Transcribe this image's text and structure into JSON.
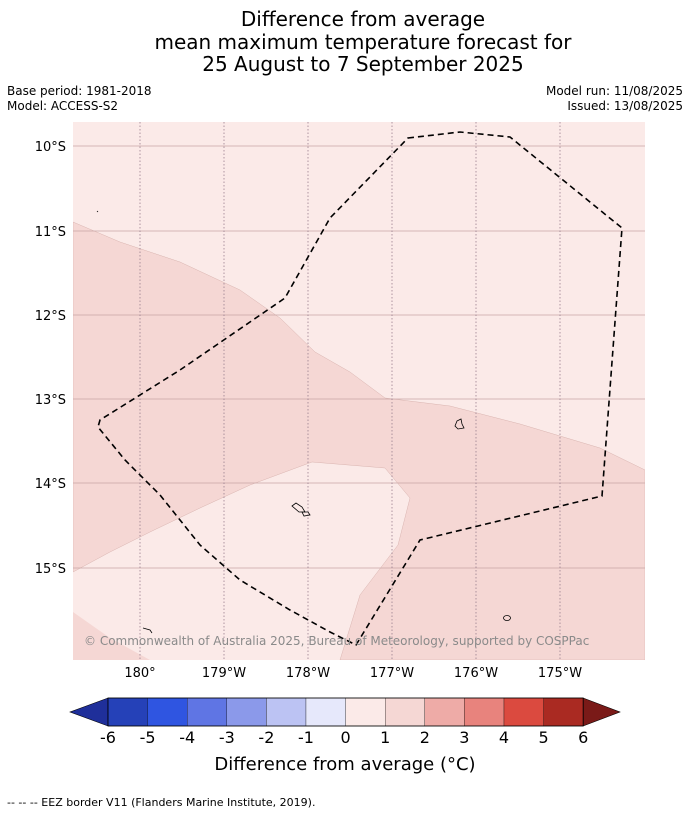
{
  "title": {
    "line1": "Difference from average",
    "line2": "mean maximum temperature forecast for",
    "line3": "25 August to 7 September 2025"
  },
  "meta_left": {
    "base_period": "Base period: 1981-2018",
    "model": "Model: ACCESS-S2"
  },
  "meta_right": {
    "model_run": "Model run: 11/08/2025",
    "issued": "Issued: 13/08/2025"
  },
  "map": {
    "lat_labels": [
      "10°S",
      "11°S",
      "12°S",
      "13°S",
      "14°S",
      "15°S"
    ],
    "lon_labels": [
      "180°",
      "179°W",
      "178°W",
      "177°W",
      "176°W",
      "175°W"
    ],
    "watermark": "© Commonwealth of Australia 2025, Bureau of Meteorology, supported by COSPPac",
    "colors": {
      "band_0_1": "#fbeae8",
      "band_1_2": "#f5d7d4",
      "gridline": "#c9a6a6",
      "eez_border": "#000000"
    }
  },
  "colorbar": {
    "ticks": [
      "-6",
      "-5",
      "-4",
      "-3",
      "-2",
      "-1",
      "0",
      "1",
      "2",
      "3",
      "4",
      "5",
      "6"
    ],
    "colors": [
      "#1f2f9a",
      "#2541b8",
      "#2f55e1",
      "#5f75e4",
      "#8b99ea",
      "#bcc3f3",
      "#e6e8fb",
      "#fbeae8",
      "#f5d7d4",
      "#eeaba7",
      "#e8837d",
      "#db4a3f",
      "#aa2a22",
      "#7a1a18"
    ],
    "label": "Difference from average (°C)"
  },
  "footer": "--  --  -- EEZ border V11 (Flanders Marine Institute, 2019)."
}
